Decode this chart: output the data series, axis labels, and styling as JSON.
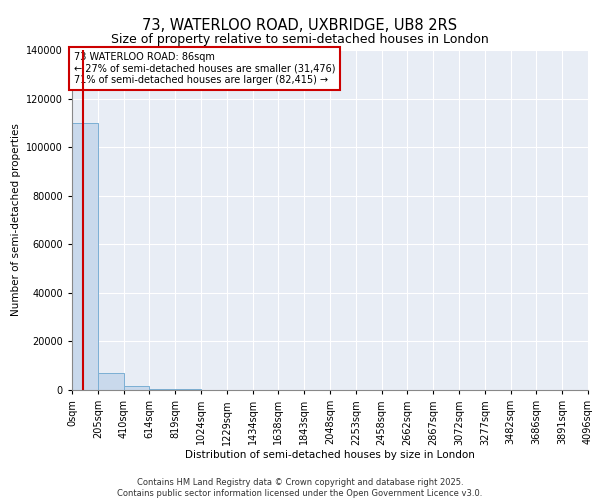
{
  "title": "73, WATERLOO ROAD, UXBRIDGE, UB8 2RS",
  "subtitle": "Size of property relative to semi-detached houses in London",
  "xlabel": "Distribution of semi-detached houses by size in London",
  "ylabel": "Number of semi-detached properties",
  "property_size": 86,
  "annotation_title": "73 WATERLOO ROAD: 86sqm",
  "annotation_line1": "← 27% of semi-detached houses are smaller (31,476)",
  "annotation_line2": "71% of semi-detached houses are larger (82,415) →",
  "bar_color": "#c9d9ec",
  "bar_edge_color": "#7bafd4",
  "vline_color": "#cc0000",
  "annotation_box_color": "#cc0000",
  "background_color": "#e8edf5",
  "footer": "Contains HM Land Registry data © Crown copyright and database right 2025.\nContains public sector information licensed under the Open Government Licence v3.0.",
  "bin_edges": [
    0,
    205,
    410,
    614,
    819,
    1024,
    1229,
    1434,
    1638,
    1843,
    2048,
    2253,
    2458,
    2662,
    2867,
    3072,
    3277,
    3482,
    3686,
    3891,
    4096
  ],
  "bin_labels": [
    "0sqm",
    "205sqm",
    "410sqm",
    "614sqm",
    "819sqm",
    "1024sqm",
    "1229sqm",
    "1434sqm",
    "1638sqm",
    "1843sqm",
    "2048sqm",
    "2253sqm",
    "2458sqm",
    "2662sqm",
    "2867sqm",
    "3072sqm",
    "3277sqm",
    "3482sqm",
    "3686sqm",
    "3891sqm",
    "4096sqm"
  ],
  "bar_heights": [
    110000,
    7000,
    1500,
    600,
    300,
    180,
    120,
    80,
    60,
    45,
    35,
    28,
    22,
    18,
    15,
    12,
    10,
    8,
    6,
    5
  ],
  "ylim": [
    0,
    140000
  ],
  "yticks": [
    0,
    20000,
    40000,
    60000,
    80000,
    100000,
    120000,
    140000
  ],
  "title_fontsize": 10.5,
  "subtitle_fontsize": 9,
  "tick_fontsize": 7,
  "ylabel_fontsize": 7.5,
  "xlabel_fontsize": 7.5,
  "footer_fontsize": 6,
  "annotation_fontsize": 7
}
